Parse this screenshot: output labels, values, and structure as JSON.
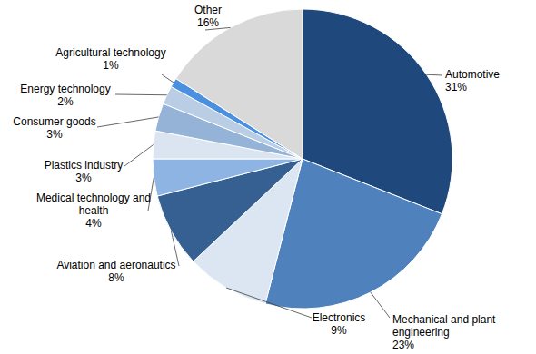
{
  "chart_data": {
    "type": "pie",
    "categories": [
      "Automotive",
      "Mechanical and plant engineering",
      "Electronics",
      "Aviation and aeronautics",
      "Medical technology and health",
      "Plastics industry",
      "Consumer goods",
      "Energy technology",
      "Agricultural technology",
      "Other"
    ],
    "values": [
      31,
      23,
      9,
      8,
      4,
      3,
      3,
      2,
      1,
      16
    ],
    "value_labels": [
      "31%",
      "23%",
      "9%",
      "8%",
      "4%",
      "3%",
      "3%",
      "2%",
      "1%",
      "16%"
    ],
    "colors": [
      "#1f497d",
      "#4f81bd",
      "#dce6f2",
      "#366092",
      "#8db4e2",
      "#dbe5f1",
      "#95b3d7",
      "#b9cde5",
      "#4a8fe0",
      "#d9d9d9"
    ],
    "data_labels": true
  }
}
